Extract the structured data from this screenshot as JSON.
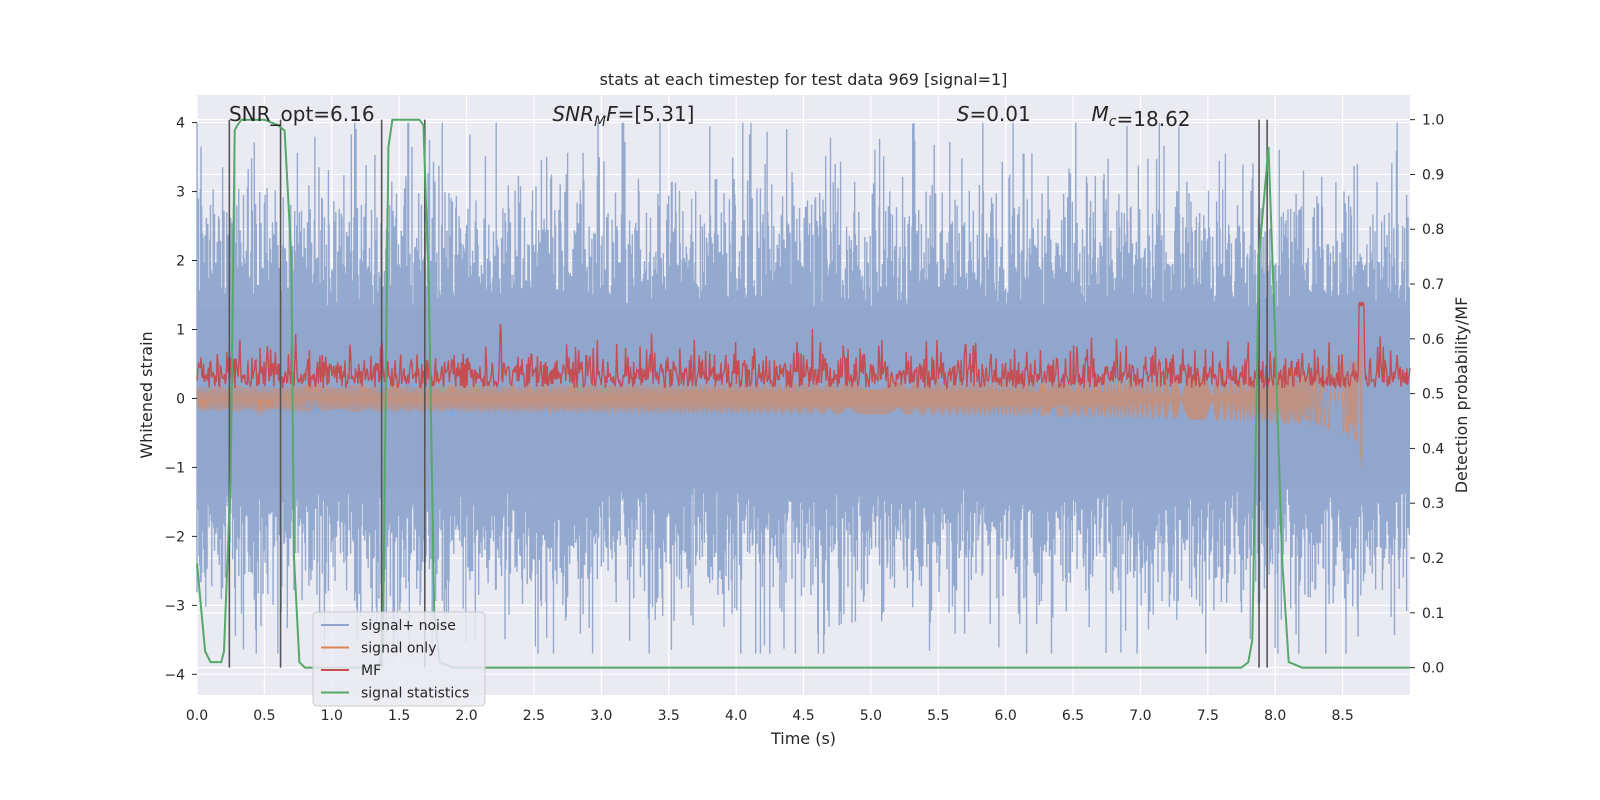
{
  "chart_data": {
    "type": "line",
    "title": "stats at each timestep for test data 969 [signal=1]",
    "xlabel": "Time (s)",
    "ylabel": "Whitened strain",
    "ylabel_right": "Detection probability/MF",
    "xlim": [
      0.0,
      9.0
    ],
    "ylim": [
      -4.3,
      4.4
    ],
    "ylim_right": [
      -0.05,
      1.045
    ],
    "xticks": [
      0.0,
      0.5,
      1.0,
      1.5,
      2.0,
      2.5,
      3.0,
      3.5,
      4.0,
      4.5,
      5.0,
      5.5,
      6.0,
      6.5,
      7.0,
      7.5,
      8.0,
      8.5
    ],
    "xtick_labels": [
      "0.0",
      "0.5",
      "1.0",
      "1.5",
      "2.0",
      "2.5",
      "3.0",
      "3.5",
      "4.0",
      "4.5",
      "5.0",
      "5.5",
      "6.0",
      "6.5",
      "7.0",
      "7.5",
      "8.0",
      "8.5"
    ],
    "yticks": [
      4,
      3,
      2,
      1,
      0,
      -1,
      -2,
      -3,
      -4
    ],
    "ytick_labels": [
      "4",
      "3",
      "2",
      "1",
      "0",
      "−1",
      "−2",
      "−3",
      "−4"
    ],
    "yticks_right": [
      1.0,
      0.9,
      0.8,
      0.7,
      0.6,
      0.5,
      0.4,
      0.3,
      0.2,
      0.1,
      0.0
    ],
    "ytick_labels_right": [
      "1.0",
      "0.9",
      "0.8",
      "0.7",
      "0.6",
      "0.5",
      "0.4",
      "0.3",
      "0.2",
      "0.1",
      "0.0"
    ],
    "annotations": [
      {
        "text": "SNR_opt=6.16",
        "x": 0.2
      },
      {
        "text": "=[5.31]",
        "label_prefix": "SNR",
        "label_sub": "M",
        "label_suffix": "F",
        "x": 2.6
      },
      {
        "text": "=0.01",
        "label_prefix": "S",
        "x": 5.6
      },
      {
        "text": "=18.62",
        "label_prefix": "M",
        "label_sub": "c",
        "x": 6.6
      }
    ],
    "legend": {
      "position": "lower-left",
      "entries": [
        {
          "label": "signal+ noise",
          "color": "#8fa5cc"
        },
        {
          "label": "signal only",
          "color": "#dd8452"
        },
        {
          "label": "MF",
          "color": "#c44e52"
        },
        {
          "label": "signal statistics",
          "color": "#55a868"
        }
      ]
    },
    "series": [
      {
        "name": "signal+ noise",
        "axis": "left",
        "color": "#8fa5cc",
        "description_values": "noisy whitened strain, range approx -3.7 to 4.0"
      },
      {
        "name": "signal only",
        "axis": "left",
        "color": "#dd8452",
        "chirp_end_time": 8.65,
        "final_amplitude": 1.3
      },
      {
        "name": "MF",
        "axis": "right",
        "color": "#c44e52",
        "baseline": 0.5,
        "range": [
          0.5,
          0.67
        ]
      },
      {
        "name": "signal statistics",
        "axis": "right",
        "color": "#55a868",
        "x": [
          0.0,
          0.06,
          0.1,
          0.18,
          0.2,
          0.25,
          0.28,
          0.3,
          0.33,
          0.4,
          0.5,
          0.6,
          0.65,
          0.7,
          0.72,
          0.76,
          0.8,
          0.9,
          1.35,
          1.38,
          1.42,
          1.45,
          1.5,
          1.6,
          1.65,
          1.68,
          1.72,
          1.76,
          1.8,
          1.9,
          7.75,
          7.8,
          7.83,
          7.88,
          7.95,
          8.0,
          8.05,
          8.1,
          8.2,
          9.0
        ],
        "y": [
          0.19,
          0.03,
          0.01,
          0.01,
          0.03,
          0.35,
          0.98,
          0.99,
          1.0,
          1.0,
          1.0,
          0.99,
          0.98,
          0.75,
          0.2,
          0.01,
          0.0,
          0.0,
          0.0,
          0.05,
          0.95,
          1.0,
          1.0,
          1.0,
          1.0,
          0.99,
          0.7,
          0.1,
          0.01,
          0.0,
          0.0,
          0.01,
          0.05,
          0.75,
          0.95,
          0.6,
          0.2,
          0.01,
          0.0,
          0.0
        ]
      }
    ],
    "vertical_markers": [
      0.24,
      0.62,
      1.37,
      1.69,
      7.88,
      7.94
    ],
    "horizontal_lines_right": [
      0.7,
      0.6,
      0.4,
      0.3
    ],
    "grid": true,
    "background": "#eaeaf2"
  }
}
